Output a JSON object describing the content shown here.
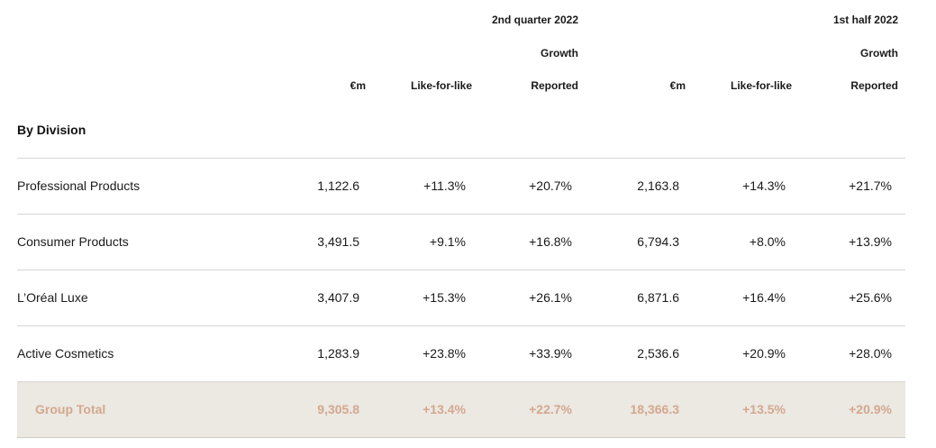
{
  "header": {
    "q2_title": "2nd quarter 2022",
    "h1_title": "1st half 2022",
    "q2_growth": "Growth",
    "h1_growth": "Growth",
    "columns": [
      "€m",
      "Like-for-like",
      "Reported",
      "€m",
      "Like-for-like",
      "Reported"
    ]
  },
  "section_title": "By Division",
  "rows": [
    {
      "label": "Professional Products",
      "values": [
        "1,122.6",
        "+11.3%",
        "+20.7%",
        "2,163.8",
        "+14.3%",
        "+21.7%"
      ]
    },
    {
      "label": "Consumer Products",
      "values": [
        "3,491.5",
        "+9.1%",
        "+16.8%",
        "6,794.3",
        "+8.0%",
        "+13.9%"
      ]
    },
    {
      "label": "L’Oréal Luxe",
      "values": [
        "3,407.9",
        "+15.3%",
        "+26.1%",
        "6,871.6",
        "+16.4%",
        "+25.6%"
      ]
    },
    {
      "label": "Active Cosmetics",
      "values": [
        "1,283.9",
        "+23.8%",
        "+33.9%",
        "2,536.6",
        "+20.9%",
        "+28.0%"
      ]
    }
  ],
  "total": {
    "label": "Group Total",
    "values": [
      "9,305.8",
      "+13.4%",
      "+22.7%",
      "18,366.3",
      "+13.5%",
      "+20.9%"
    ]
  },
  "colors": {
    "total_background": "#ece8e2",
    "total_text": "#d3a88f",
    "rule": "#d6d6d6"
  }
}
